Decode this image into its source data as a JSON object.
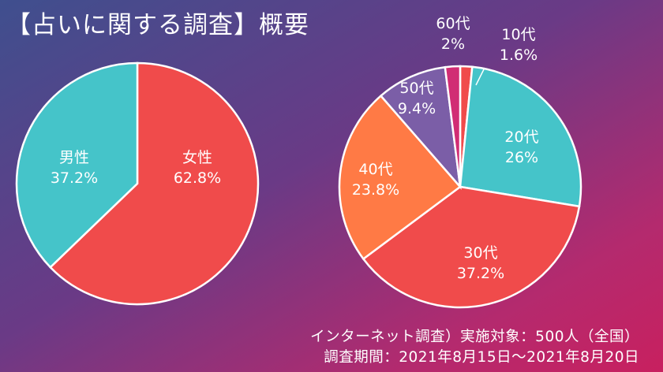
{
  "title": "【占いに関する調査】概要",
  "footer": {
    "line1": "インターネット調査）実施対象：500人（全国）",
    "line2": "調査期間：2021年8月15日～2021年8月20日"
  },
  "colors": {
    "teal": "#45c4c9",
    "red": "#f04b4b",
    "orange": "#ff7a45",
    "purple": "#7b5ea7",
    "magenta": "#d12d74"
  },
  "chart_data": [
    {
      "type": "pie",
      "categories": [
        "女性",
        "男性"
      ],
      "values": [
        62.8,
        37.2
      ],
      "value_labels": [
        "62.8%",
        "37.2%"
      ],
      "colors": [
        "#f04b4b",
        "#45c4c9"
      ],
      "start": "top",
      "direction": "clockwise"
    },
    {
      "type": "pie",
      "categories": [
        "10代",
        "20代",
        "30代",
        "40代",
        "50代",
        "60代"
      ],
      "values": [
        1.6,
        26,
        37.2,
        23.8,
        9.4,
        2
      ],
      "value_labels": [
        "1.6%",
        "26%",
        "37.2%",
        "23.8%",
        "9.4%",
        "2%"
      ],
      "colors": [
        "#f04b4b",
        "#45c4c9",
        "#f04b4b",
        "#ff7a45",
        "#7b5ea7",
        "#d12d74"
      ],
      "start": "top",
      "direction": "clockwise"
    }
  ]
}
